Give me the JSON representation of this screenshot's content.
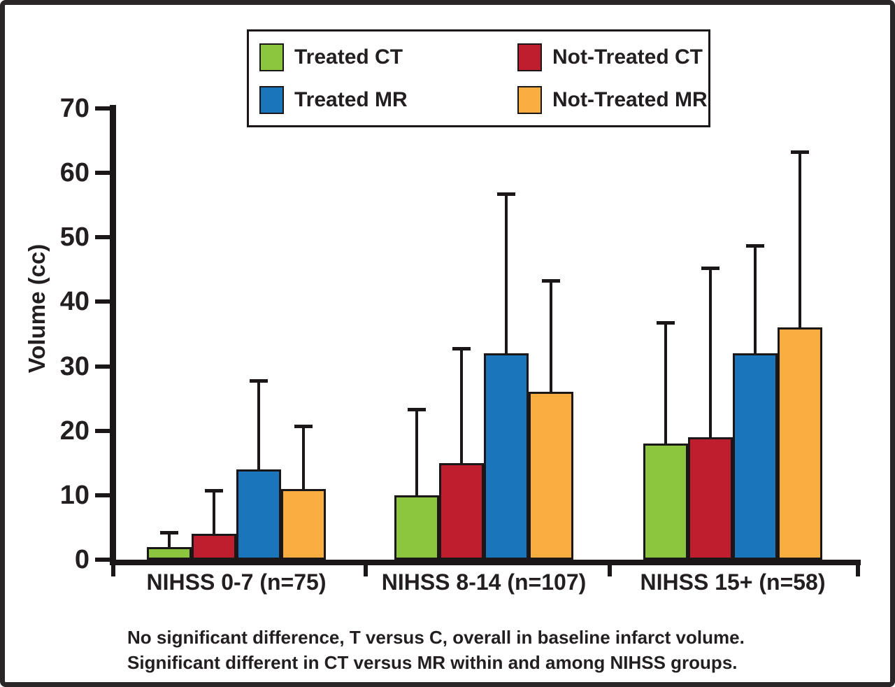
{
  "figure": {
    "y_axis_title": "Volume (cc)",
    "footnote_line1": "No significant difference, T versus C, overall in baseline infarct volume.",
    "footnote_line2": "Significant different in CT versus MR within and among NIHSS groups."
  },
  "colors": {
    "treated_ct": "#8CC63F",
    "not_treated_ct": "#BE1E2D",
    "treated_mr": "#1B75BB",
    "not_treated_mr": "#FAAE40",
    "axis": "#1B1718",
    "frame": "#2A2526"
  },
  "legend": {
    "items": [
      {
        "label": "Treated CT",
        "color": "#8CC63F"
      },
      {
        "label": "Not-Treated CT",
        "color": "#BE1E2D"
      },
      {
        "label": "Treated MR",
        "color": "#1B75BB"
      },
      {
        "label": "Not-Treated MR",
        "color": "#FAAE40"
      }
    ]
  },
  "chart_data": {
    "type": "bar",
    "title": "",
    "xlabel": "",
    "ylabel": "Volume (cc)",
    "ylim": [
      0,
      70
    ],
    "ytick_step": 10,
    "grid": false,
    "legend_position": "top-center",
    "error_bars": "upper-only; error_top values are absolute y positions of the error-bar caps in cc",
    "categories": [
      "NIHSS 0-7 (n=75)",
      "NIHSS 8-14 (n=107)",
      "NIHSS 15+ (n=58)"
    ],
    "series": [
      {
        "name": "Treated CT",
        "color": "#8CC63F",
        "values": [
          2,
          10,
          18
        ],
        "error_top": [
          4.5,
          23.5,
          37
        ]
      },
      {
        "name": "Not-Treated CT",
        "color": "#BE1E2D",
        "values": [
          4,
          15,
          19
        ],
        "error_top": [
          11,
          33,
          45.5
        ]
      },
      {
        "name": "Treated MR",
        "color": "#1B75BB",
        "values": [
          14,
          32,
          32
        ],
        "error_top": [
          28,
          57,
          49
        ]
      },
      {
        "name": "Not-Treated MR",
        "color": "#FAAE40",
        "values": [
          11,
          26,
          36
        ],
        "error_top": [
          21,
          43.5,
          63.5
        ]
      }
    ]
  }
}
